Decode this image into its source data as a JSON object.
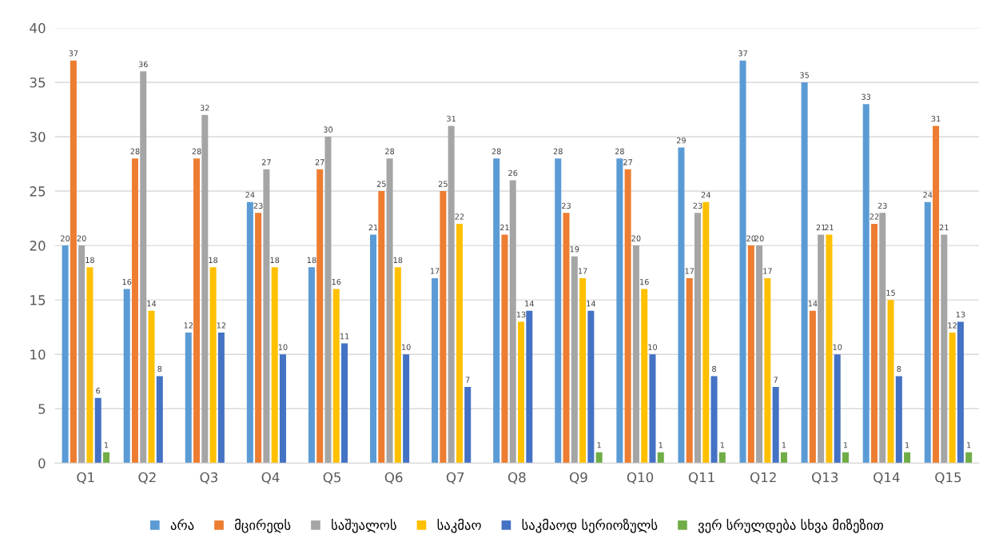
{
  "chart_data": {
    "type": "bar",
    "categories": [
      "Q1",
      "Q2",
      "Q3",
      "Q4",
      "Q5",
      "Q6",
      "Q7",
      "Q8",
      "Q9",
      "Q10",
      "Q11",
      "Q12",
      "Q13",
      "Q14",
      "Q15"
    ],
    "series": [
      {
        "name": "არა",
        "color": "#5b9bd5",
        "values": [
          20,
          16,
          12,
          24,
          18,
          21,
          17,
          28,
          28,
          28,
          29,
          37,
          35,
          33,
          24
        ]
      },
      {
        "name": "მცირედს",
        "color": "#ed7d31",
        "values": [
          37,
          28,
          28,
          23,
          27,
          25,
          25,
          21,
          23,
          27,
          17,
          20,
          14,
          22,
          31
        ]
      },
      {
        "name": "საშუალოს",
        "color": "#a5a5a5",
        "values": [
          20,
          36,
          32,
          27,
          30,
          28,
          31,
          26,
          19,
          20,
          23,
          20,
          21,
          23,
          21
        ]
      },
      {
        "name": "საკმაო",
        "color": "#ffc000",
        "values": [
          18,
          14,
          18,
          18,
          16,
          18,
          22,
          13,
          17,
          16,
          24,
          17,
          21,
          15,
          12
        ]
      },
      {
        "name": "საკმაოდ სერიოზულს",
        "color": "#4472c4",
        "values": [
          6,
          8,
          12,
          10,
          11,
          10,
          7,
          14,
          14,
          10,
          8,
          7,
          10,
          8,
          13
        ]
      },
      {
        "name": "ვერ სრულდება სხვა მიზეზით",
        "color": "#70ad47",
        "values": [
          1,
          null,
          null,
          null,
          null,
          null,
          null,
          null,
          1,
          1,
          1,
          1,
          1,
          1,
          1
        ]
      }
    ],
    "ylim": [
      0,
      40
    ],
    "yticks": [
      0,
      5,
      10,
      15,
      20,
      25,
      30,
      35,
      40
    ],
    "grid": "y",
    "legend": "bottom",
    "data_labels": true
  }
}
